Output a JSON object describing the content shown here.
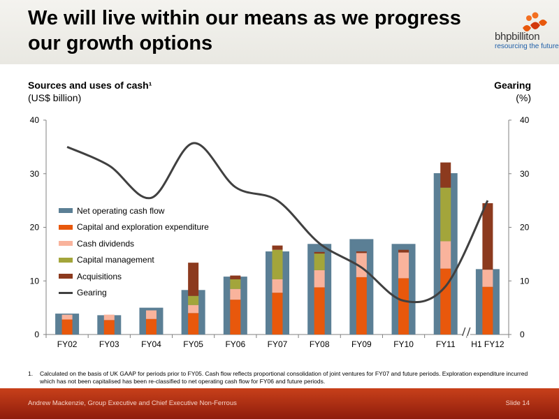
{
  "slide": {
    "title": "We will live within our means as we progress our growth options",
    "logo_name": "bhpbilliton",
    "logo_tagline": "resourcing the future",
    "left_axis_title": "Sources and uses of cash¹",
    "left_axis_unit": "(US$ billion)",
    "right_axis_title": "Gearing",
    "right_axis_unit": "(%)",
    "footnote_number": "1.",
    "footnote_text": "Calculated on the basis of UK GAAP for periods prior to FY05. Cash flow reflects proportional consolidation of joint ventures for FY07 and future periods. Exploration expenditure incurred which has not been capitalised has been re-classified to net operating cash flow for FY06 and future periods.",
    "footer_text": "Andrew Mackenzie, Group Executive and Chief Executive Non-Ferrous",
    "slide_number": "Slide 14"
  },
  "colors": {
    "net_operating_cash_flow": "#5b7f95",
    "capex": "#e8580c",
    "cash_dividends": "#f9b39c",
    "capital_management": "#a3a53b",
    "acquisitions": "#8c3a1e",
    "gearing": "#404040"
  },
  "chart_data": {
    "type": "bar",
    "categories": [
      "FY02",
      "FY03",
      "FY04",
      "FY05",
      "FY06",
      "FY07",
      "FY08",
      "FY09",
      "FY10",
      "FY11",
      "H1 FY12"
    ],
    "y_left_ticks": [
      "0",
      "10",
      "20",
      "30",
      "40"
    ],
    "y_right_ticks": [
      "0",
      "10",
      "20",
      "30",
      "40"
    ],
    "ylim": [
      0,
      40
    ],
    "y2lim": [
      0,
      40
    ],
    "axis_break_before": "H1 FY12",
    "series": [
      {
        "name": "Net operating cash flow",
        "values": [
          3.9,
          3.6,
          5.0,
          8.3,
          10.8,
          15.5,
          16.9,
          17.8,
          16.9,
          30.1,
          12.2
        ]
      },
      {
        "name": "Capital and exploration expenditure",
        "values": [
          2.8,
          2.7,
          2.9,
          4.0,
          6.5,
          7.8,
          8.8,
          10.7,
          10.5,
          12.3,
          8.9
        ]
      },
      {
        "name": "Cash dividends",
        "values": [
          0.9,
          1.0,
          1.6,
          1.5,
          2.0,
          2.5,
          3.2,
          4.5,
          4.8,
          5.1,
          3.2
        ]
      },
      {
        "name": "Capital management",
        "values": [
          0,
          0,
          0,
          1.7,
          1.8,
          5.5,
          3.1,
          0,
          0,
          10.0,
          0
        ]
      },
      {
        "name": "Acquisitions",
        "values": [
          0,
          0,
          0,
          6.2,
          0.7,
          0.8,
          0.3,
          0.3,
          0.5,
          4.7,
          12.4
        ]
      }
    ],
    "gearing": {
      "name": "Gearing",
      "values": [
        35,
        31.5,
        25.5,
        35.7,
        27.5,
        25,
        17,
        12.5,
        6.3,
        9,
        25
      ]
    },
    "legend": [
      "Net operating cash flow",
      "Capital and exploration expenditure",
      "Cash dividends",
      "Capital management",
      "Acquisitions",
      "Gearing"
    ],
    "grid": false
  }
}
